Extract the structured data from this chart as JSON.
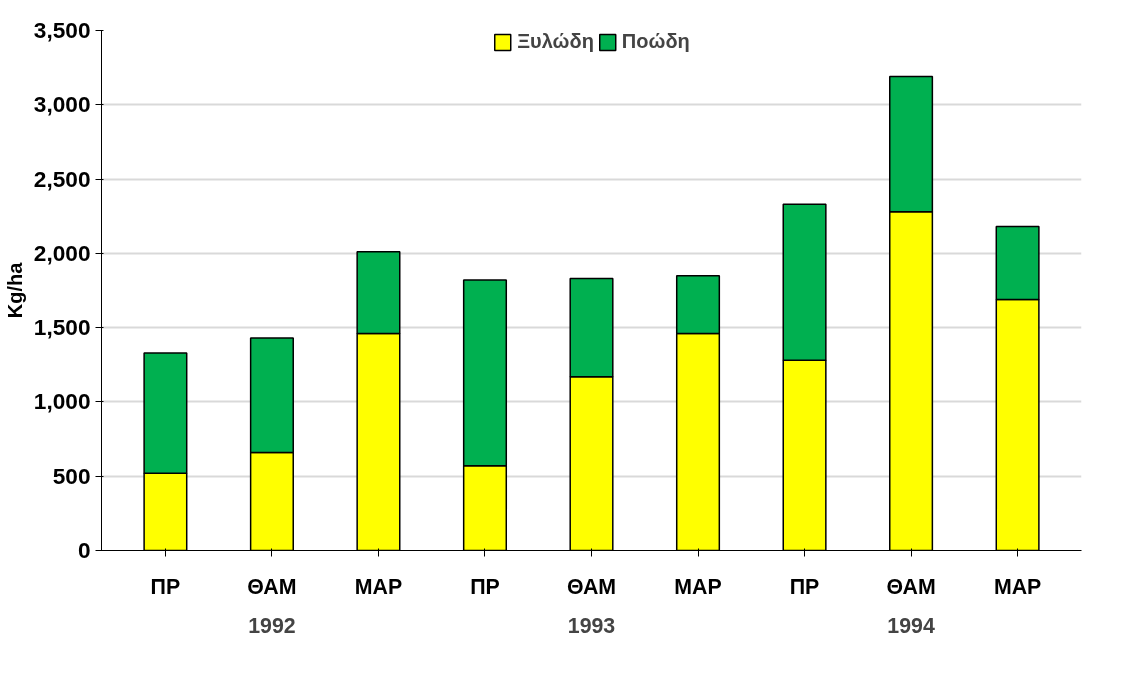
{
  "chart_data": {
    "type": "bar",
    "stacked": true,
    "ylabel": "Kg/ha",
    "categories": [
      "ΠΡ",
      "ΘΑΜ",
      "ΜΑΡ",
      "ΠΡ",
      "ΘΑΜ",
      "ΜΑΡ",
      "ΠΡ",
      "ΘΑΜ",
      "ΜΑΡ"
    ],
    "series": [
      {
        "name": "Ξυλώδη",
        "color": "#ffff00",
        "values": [
          520,
          660,
          1460,
          570,
          1170,
          1460,
          1280,
          2280,
          1690
        ]
      },
      {
        "name": "Ποώδη",
        "color": "#00b050",
        "values": [
          810,
          770,
          550,
          1250,
          660,
          390,
          1050,
          910,
          490
        ]
      }
    ],
    "annotations": [
      "1992",
      "1993",
      "1994"
    ],
    "ylim": [
      0,
      3500
    ],
    "yticks": [
      0,
      500,
      {
        "value": 1000,
        "label": "1,000"
      },
      {
        "value": 1500,
        "label": "1,500"
      },
      {
        "value": 2000,
        "label": "2,000"
      },
      {
        "value": 2500,
        "label": "2,500"
      },
      {
        "value": 3000,
        "label": "3,000"
      },
      {
        "value": 3500,
        "label": "3,500"
      }
    ],
    "grid": "y",
    "legend": "top"
  }
}
